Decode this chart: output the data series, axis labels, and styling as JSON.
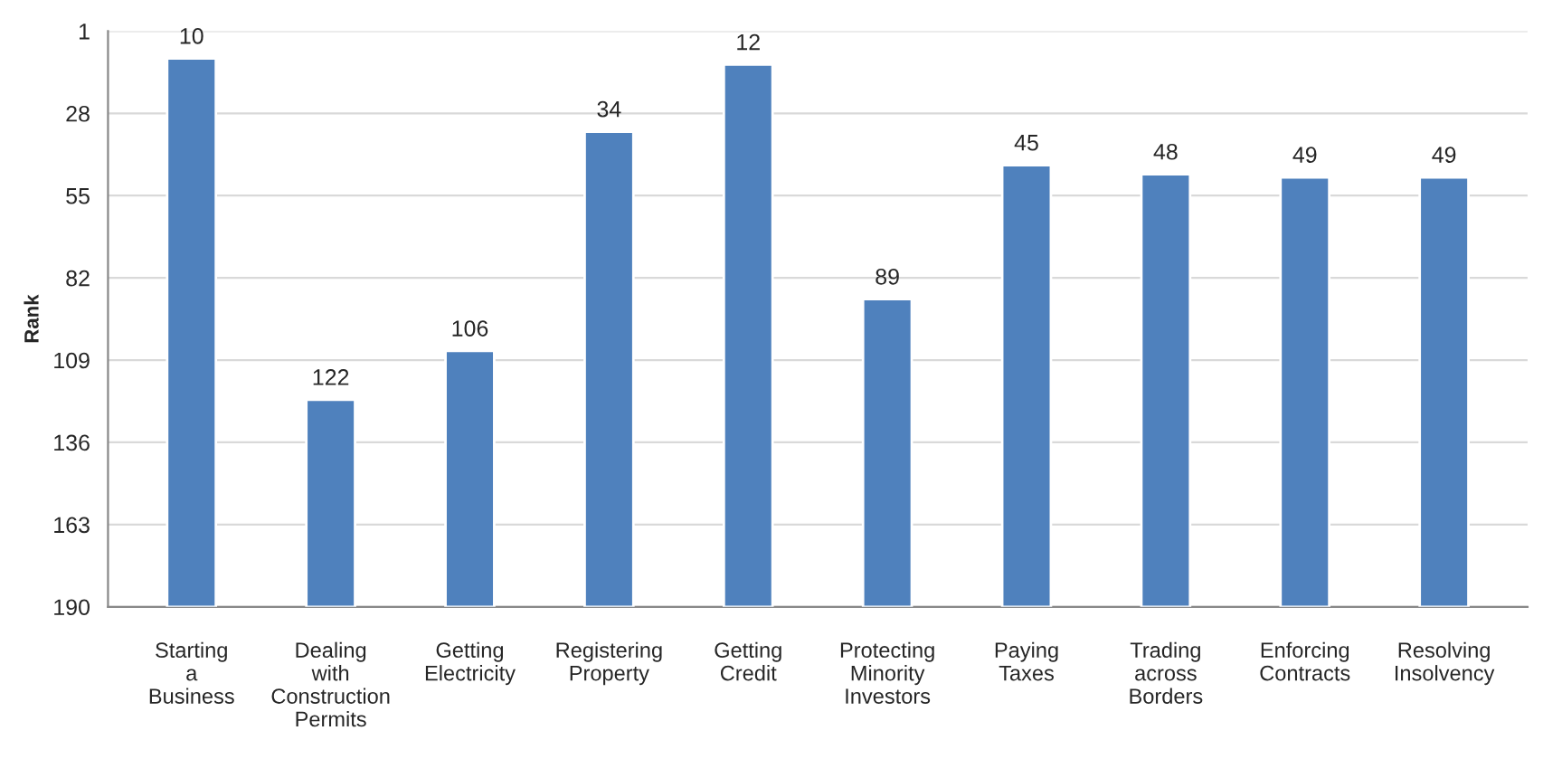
{
  "chart_data": {
    "type": "bar",
    "ylabel": "Rank",
    "categories": [
      "Starting\na\nBusiness",
      "Dealing\nwith\nConstruction\nPermits",
      "Getting\nElectricity",
      "Registering\nProperty",
      "Getting\nCredit",
      "Protecting\nMinority\nInvestors",
      "Paying\nTaxes",
      "Trading\nacross\nBorders",
      "Enforcing\nContracts",
      "Resolving\nInsolvency"
    ],
    "base": [
      190,
      190,
      190,
      190,
      190,
      190,
      190,
      190,
      190,
      190
    ],
    "values": [
      -180,
      -68,
      -84,
      -156,
      -178,
      -101,
      -145,
      -142,
      -141,
      -141
    ],
    "value_labels": [
      "10",
      "122",
      "106",
      "34",
      "12",
      "89",
      "45",
      "48",
      "49",
      "49"
    ],
    "color": "#4f81bd",
    "ylim": [
      190,
      1
    ],
    "yticks": [
      1,
      28,
      55,
      82,
      109,
      136,
      163,
      190
    ],
    "grid": "y"
  }
}
